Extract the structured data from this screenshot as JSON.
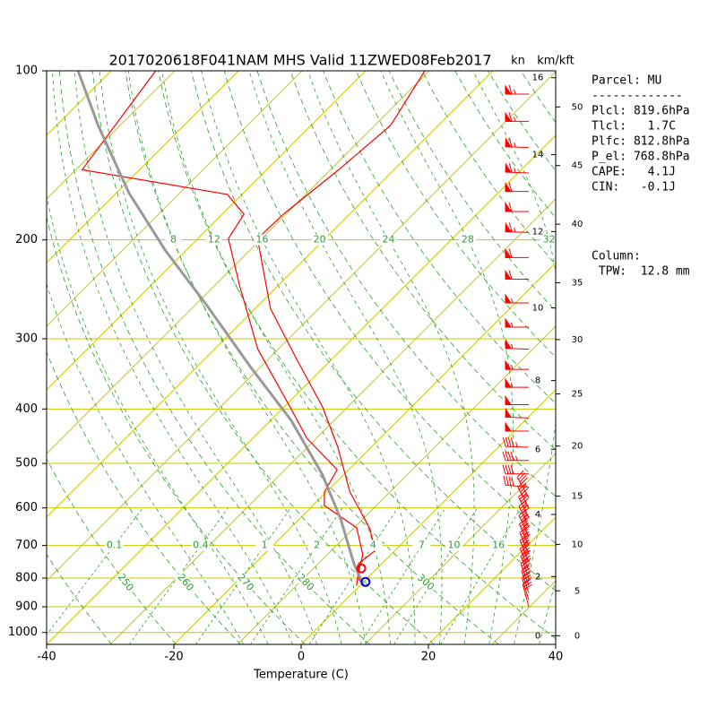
{
  "chart_data": {
    "type": "skewt",
    "title": "2017020618F041NAM MHS Valid 11ZWED08Feb2017",
    "xlabel": "Temperature (C)",
    "xlim": [
      -40,
      40
    ],
    "xticks": [
      -40,
      -20,
      0,
      20,
      40
    ],
    "ylim": [
      1050,
      100
    ],
    "yticks": [
      100,
      200,
      300,
      400,
      500,
      600,
      700,
      800,
      900,
      1000
    ],
    "log_y": true,
    "series": [
      {
        "color": "#ff0000",
        "pressure": [
          826,
          805,
          754,
          714,
          651,
          562,
          468,
          397,
          324,
          265,
          199,
          180,
          150,
          125,
          100
        ],
        "values": [
          0.6,
          -1.1,
          -3.7,
          -3.1,
          -7.6,
          -16.3,
          -25.2,
          -33.9,
          -45.9,
          -57.6,
          -70.6,
          -70.4,
          -68.7,
          -67.5,
          -70.7
        ]
      },
      {
        "color": "#ff0000",
        "pressure": [
          826,
          782,
          727,
          651,
          594,
          562,
          513,
          451,
          397,
          313,
          242,
          199,
          180,
          166,
          150,
          100
        ],
        "values": [
          -0.5,
          -2.3,
          -4.4,
          -9.6,
          -18.2,
          -20.3,
          -21.8,
          -31.5,
          -39,
          -53.2,
          -65.9,
          -75.2,
          -76.6,
          -82.3,
          -109,
          -113
        ]
      },
      {
        "color": "#999999",
        "pressure": [
          826,
          754,
          628,
          523,
          419,
          337,
          260,
          209,
          165,
          125,
          100
        ],
        "values": [
          0.6,
          -4.4,
          -13.5,
          -23.4,
          -36.8,
          -51.5,
          -68.5,
          -83.2,
          -98,
          -113.5,
          -125.2
        ]
      }
    ],
    "markers": [
      {
        "pressure": 768.8,
        "temperature": -2.5,
        "color": "#ff0000"
      },
      {
        "pressure": 812.8,
        "temperature": 0.3,
        "color": "#0000ff"
      }
    ],
    "dry_adiabat_labels": [
      250,
      260,
      270,
      280,
      300
    ],
    "moist_adiabat_labels": [
      8,
      12,
      16,
      20,
      24,
      28,
      32
    ],
    "mixing_ratio_labels": [
      0.1,
      0.4,
      1,
      2,
      4,
      7,
      10,
      16
    ],
    "wind_units": "kn",
    "height_units": "km/kft",
    "km_ticks": [
      0,
      2,
      4,
      6,
      8,
      10,
      12,
      14,
      16
    ],
    "kft_ticks": [
      0,
      5,
      10,
      15,
      20,
      25,
      30,
      35,
      40,
      45,
      50
    ],
    "wind": {
      "color": "#ff0000",
      "pressure": [
        110,
        123,
        137,
        152,
        164,
        178,
        194,
        215,
        235,
        259,
        286,
        313,
        340,
        366,
        393,
        415,
        438,
        468,
        494,
        522,
        551,
        575,
        600,
        625,
        650,
        675,
        700,
        725,
        750,
        775,
        800,
        825,
        850,
        875,
        900
      ],
      "speed": [
        65,
        65,
        65,
        65,
        60,
        60,
        65,
        60,
        60,
        55,
        55,
        55,
        55,
        55,
        50,
        50,
        50,
        45,
        45,
        40,
        40,
        45,
        45,
        45,
        45,
        45,
        45,
        45,
        45,
        40,
        40,
        35,
        35,
        30,
        30
      ],
      "direction": [
        270,
        270,
        272,
        272,
        270,
        270,
        272,
        270,
        270,
        270,
        270,
        272,
        270,
        270,
        270,
        272,
        270,
        272,
        270,
        270,
        275,
        330,
        332,
        334,
        335,
        335,
        336,
        337,
        338,
        338,
        340,
        340,
        342,
        343,
        345
      ]
    },
    "parcel_text": [
      "Parcel: MU",
      "-------------",
      "Plcl: 819.6hPa",
      "Tlcl:   1.7C",
      "Plfc: 812.8hPa",
      "P_el: 768.8hPa",
      "CAPE:   4.1J",
      "CIN:   -0.1J"
    ],
    "column_text": [
      "Column:",
      " TPW:  12.8 mm"
    ]
  }
}
